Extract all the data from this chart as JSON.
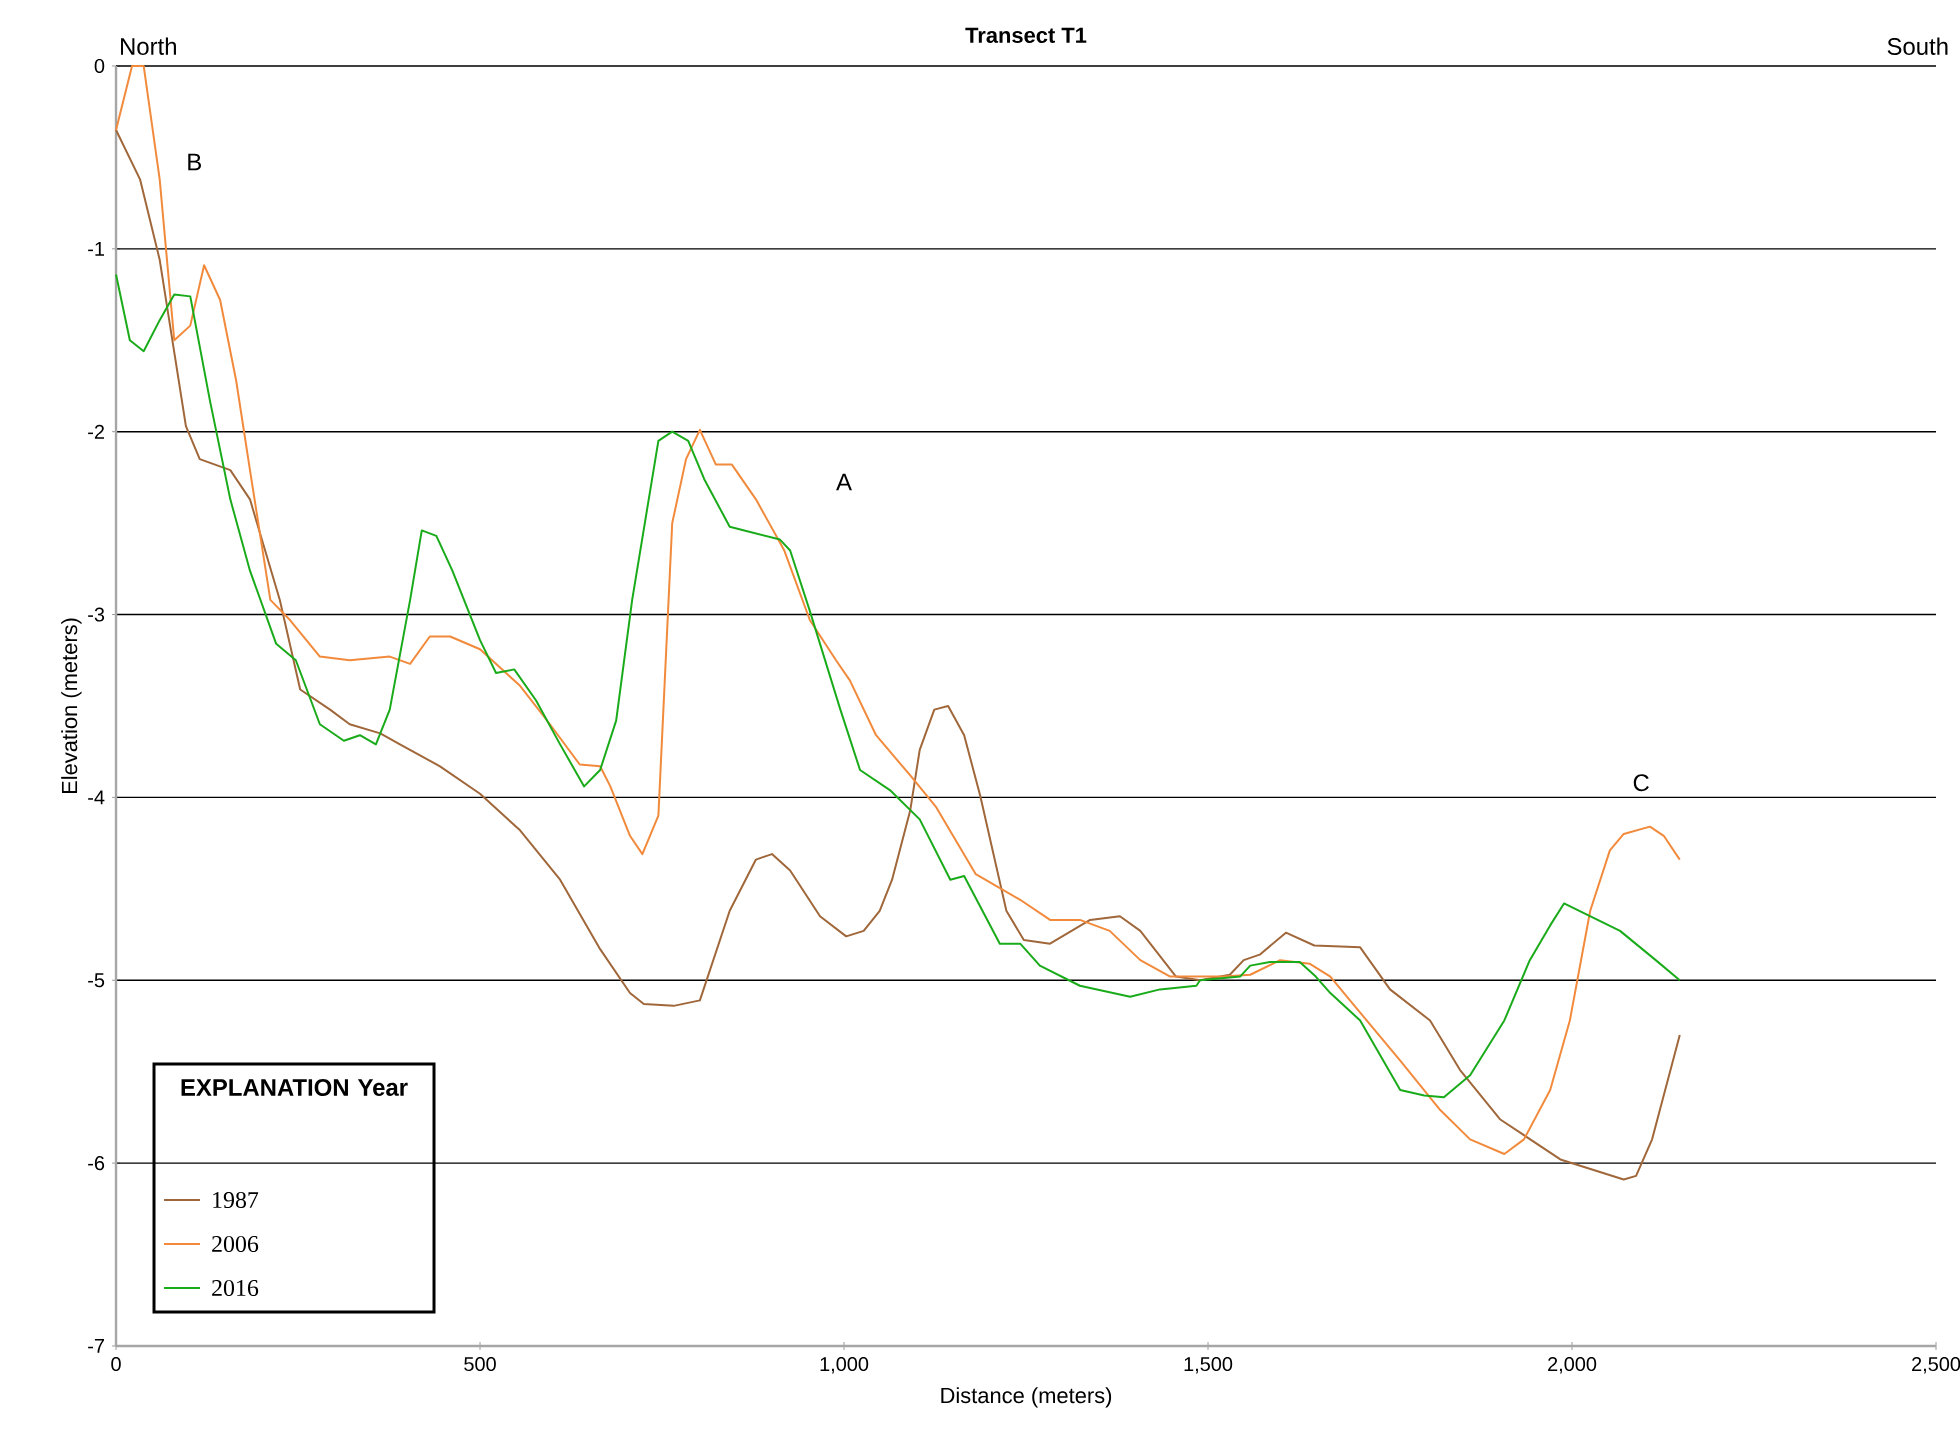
{
  "chart_data": {
    "type": "line",
    "title": "Transect T1",
    "xlabel": "Distance (meters)",
    "ylabel": "Elevation (meters)",
    "legend_title": "EXPLANATION Year",
    "annotations": [
      "North",
      "South",
      "A",
      "B",
      "C"
    ],
    "xlim": [
      0,
      2500
    ],
    "ylim": [
      -7,
      0
    ],
    "xticks": [
      0,
      500,
      {
        "value": 1000,
        "label": "1,000"
      },
      {
        "value": 1500,
        "label": "1,500"
      },
      {
        "value": 2000,
        "label": "2,000"
      },
      {
        "value": 2500,
        "label": "2,500"
      }
    ],
    "yticks": [
      -7,
      -6,
      -5,
      -4,
      -3,
      -2,
      -1,
      0
    ],
    "grid": "y",
    "legend": "bottom left",
    "marker": "none",
    "line_style": "solid",
    "series": [
      {
        "name": "1987",
        "color": "#a0673a",
        "x": [
          0,
          33,
          60,
          96,
          115,
          157,
          184,
          225,
          253,
          294,
          321,
          363,
          390,
          445,
          500,
          555,
          610,
          665,
          706,
          725,
          766,
          802,
          843,
          879,
          901,
          926,
          967,
          1003,
          1027,
          1049,
          1066,
          1091,
          1104,
          1124,
          1143,
          1165,
          1187,
          1223,
          1247,
          1283,
          1338,
          1379,
          1407,
          1456,
          1489,
          1530,
          1549,
          1571,
          1607,
          1646,
          1709,
          1750,
          1805,
          1846,
          1901,
          1984,
          2071,
          2088,
          2110,
          2148
        ],
        "values": [
          -0.35,
          -0.62,
          -1.06,
          -1.97,
          -2.15,
          -2.21,
          -2.37,
          -2.92,
          -3.41,
          -3.52,
          -3.6,
          -3.65,
          -3.71,
          -3.83,
          -3.98,
          -4.18,
          -4.45,
          -4.83,
          -5.07,
          -5.13,
          -5.14,
          -5.11,
          -4.62,
          -4.34,
          -4.31,
          -4.4,
          -4.65,
          -4.76,
          -4.73,
          -4.62,
          -4.45,
          -4.07,
          -3.74,
          -3.52,
          -3.5,
          -3.66,
          -3.99,
          -4.62,
          -4.78,
          -4.8,
          -4.67,
          -4.65,
          -4.73,
          -4.98,
          -5.0,
          -4.97,
          -4.89,
          -4.86,
          -4.74,
          -4.81,
          -4.82,
          -5.05,
          -5.22,
          -5.49,
          -5.76,
          -5.98,
          -6.09,
          -6.07,
          -5.87,
          -5.3
        ]
      },
      {
        "name": "2006",
        "color": "#f28a3c",
        "x": [
          0,
          22,
          38,
          60,
          80,
          102,
          121,
          143,
          165,
          184,
          212,
          239,
          280,
          321,
          376,
          404,
          431,
          459,
          500,
          555,
          596,
          637,
          665,
          679,
          706,
          723,
          745,
          764,
          783,
          802,
          824,
          846,
          879,
          918,
          953,
          989,
          1008,
          1044,
          1091,
          1126,
          1181,
          1242,
          1283,
          1324,
          1365,
          1407,
          1448,
          1522,
          1558,
          1599,
          1640,
          1668,
          1695,
          1764,
          1819,
          1860,
          1907,
          1934,
          1970,
          1997,
          2025,
          2052,
          2071,
          2107,
          2126,
          2148
        ],
        "values": [
          -0.35,
          0,
          0,
          -0.62,
          -1.5,
          -1.42,
          -1.09,
          -1.28,
          -1.72,
          -2.21,
          -2.92,
          -3.03,
          -3.23,
          -3.25,
          -3.23,
          -3.27,
          -3.12,
          -3.12,
          -3.19,
          -3.39,
          -3.6,
          -3.82,
          -3.83,
          -3.94,
          -4.21,
          -4.31,
          -4.1,
          -2.5,
          -2.15,
          -1.99,
          -2.18,
          -2.18,
          -2.37,
          -2.65,
          -3.03,
          -3.25,
          -3.36,
          -3.66,
          -3.88,
          -4.05,
          -4.42,
          -4.56,
          -4.67,
          -4.67,
          -4.73,
          -4.89,
          -4.98,
          -4.98,
          -4.97,
          -4.89,
          -4.91,
          -4.98,
          -5.11,
          -5.44,
          -5.71,
          -5.87,
          -5.95,
          -5.87,
          -5.6,
          -5.22,
          -4.62,
          -4.29,
          -4.2,
          -4.16,
          -4.21,
          -4.34
        ]
      },
      {
        "name": "2016",
        "color": "#1aab1a",
        "x": [
          0,
          19,
          38,
          60,
          80,
          102,
          129,
          157,
          184,
          220,
          247,
          280,
          313,
          335,
          357,
          376,
          404,
          420,
          440,
          462,
          500,
          522,
          547,
          577,
          610,
          643,
          665,
          687,
          709,
          745,
          764,
          786,
          808,
          843,
          863,
          912,
          926,
          953,
          995,
          1022,
          1063,
          1104,
          1146,
          1165,
          1214,
          1242,
          1269,
          1324,
          1393,
          1434,
          1484,
          1489,
          1544,
          1558,
          1585,
          1626,
          1648,
          1668,
          1709,
          1764,
          1797,
          1824,
          1860,
          1907,
          1942,
          1970,
          1989,
          2066,
          2115,
          2148
        ],
        "values": [
          -1.14,
          -1.5,
          -1.56,
          -1.39,
          -1.25,
          -1.26,
          -1.83,
          -2.37,
          -2.76,
          -3.16,
          -3.25,
          -3.6,
          -3.69,
          -3.66,
          -3.71,
          -3.52,
          -2.92,
          -2.54,
          -2.57,
          -2.76,
          -3.14,
          -3.32,
          -3.3,
          -3.47,
          -3.71,
          -3.94,
          -3.85,
          -3.58,
          -2.92,
          -2.05,
          -2.0,
          -2.05,
          -2.26,
          -2.52,
          -2.54,
          -2.59,
          -2.65,
          -2.98,
          -3.52,
          -3.85,
          -3.96,
          -4.12,
          -4.45,
          -4.43,
          -4.8,
          -4.8,
          -4.92,
          -5.03,
          -5.09,
          -5.05,
          -5.03,
          -5.0,
          -4.98,
          -4.92,
          -4.9,
          -4.9,
          -4.98,
          -5.07,
          -5.22,
          -5.6,
          -5.63,
          -5.64,
          -5.52,
          -5.22,
          -4.89,
          -4.7,
          -4.58,
          -4.73,
          -4.89,
          -5.0
        ]
      }
    ]
  }
}
